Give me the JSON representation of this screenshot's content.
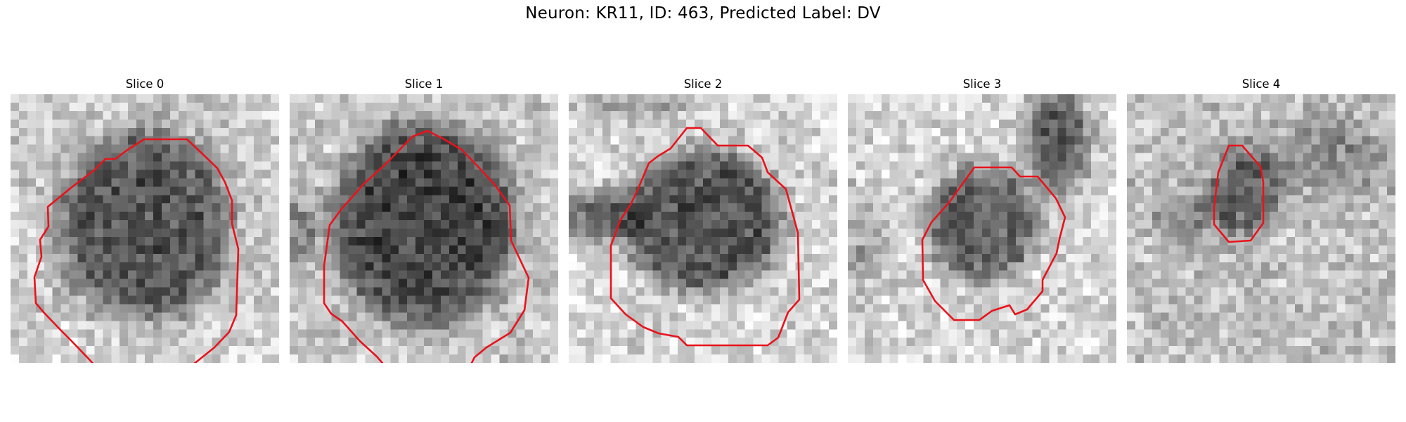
{
  "figure": {
    "title": "Neuron: KR11, ID: 463, Predicted Label: DV",
    "contour_color": "#e8131b"
  },
  "slices": [
    {
      "title": "Slice 0"
    },
    {
      "title": "Slice 1"
    },
    {
      "title": "Slice 2"
    },
    {
      "title": "Slice 3"
    },
    {
      "title": "Slice 4"
    }
  ]
}
